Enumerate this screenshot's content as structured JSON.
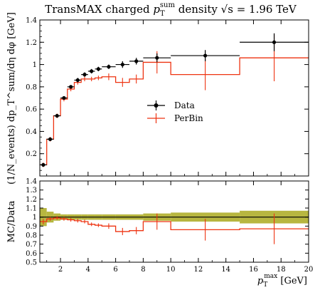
{
  "chart_data": [
    {
      "type": "line",
      "title": "TransMAX charged p_T^sum density √s = 1.96 TeV",
      "title_parts": {
        "prefix": "TransMAX charged ",
        "var": "p",
        "var_sub": "T",
        "var_sup": "sum",
        "middle": " density ",
        "sqrt_s": "√s",
        "energy": " = 1.96 TeV"
      },
      "ylabel": "(1/N_events) dp_T^sum/dη dφ [GeV]",
      "xlim": [
        0.5,
        20
      ],
      "ylim": [
        0,
        1.4
      ],
      "yticks": [
        "0.2",
        "0.4",
        "0.6",
        "0.8",
        "1",
        "1.2",
        "1.4"
      ],
      "legend_placement": "center-right",
      "series": [
        {
          "name": "Data",
          "color": "#000000",
          "x": [
            0.75,
            1.25,
            1.75,
            2.25,
            2.75,
            3.25,
            3.75,
            4.25,
            4.75,
            5.5,
            6.5,
            7.5,
            9.0,
            12.5,
            17.5
          ],
          "xerr": [
            0.25,
            0.25,
            0.25,
            0.25,
            0.25,
            0.25,
            0.25,
            0.25,
            0.25,
            0.5,
            0.5,
            0.5,
            1.0,
            2.5,
            2.5
          ],
          "y": [
            0.1,
            0.33,
            0.54,
            0.7,
            0.8,
            0.86,
            0.91,
            0.94,
            0.96,
            0.98,
            1.0,
            1.03,
            1.06,
            1.08,
            1.2
          ],
          "yerr": [
            0.01,
            0.01,
            0.01,
            0.01,
            0.01,
            0.02,
            0.02,
            0.02,
            0.02,
            0.02,
            0.03,
            0.03,
            0.04,
            0.05,
            0.08
          ]
        },
        {
          "name": "PerBin",
          "color": "#ee3311",
          "bins": [
            0.5,
            1.0,
            1.5,
            2.0,
            2.5,
            3.0,
            3.5,
            4.0,
            4.5,
            5.0,
            6.0,
            7.0,
            8.0,
            10.0,
            15.0,
            20.0
          ],
          "y": [
            0.1,
            0.33,
            0.54,
            0.69,
            0.78,
            0.84,
            0.87,
            0.87,
            0.88,
            0.89,
            0.84,
            0.87,
            1.02,
            0.91,
            1.06
          ],
          "yerr": [
            0.02,
            0.02,
            0.02,
            0.02,
            0.02,
            0.02,
            0.02,
            0.02,
            0.02,
            0.03,
            0.04,
            0.04,
            0.1,
            0.14,
            0.21
          ]
        }
      ]
    },
    {
      "type": "line",
      "ylabel": "MC/Data",
      "xlabel": "p_T^max [GeV]",
      "xlabel_parts": {
        "var": "p",
        "var_sub": "T",
        "var_sup": "max",
        "unit": " [GeV]"
      },
      "xlim": [
        0.5,
        20
      ],
      "ylim": [
        0.5,
        1.4
      ],
      "yticks": [
        "0.5",
        "0.6",
        "0.7",
        "0.8",
        "0.9",
        "1",
        "1.1",
        "1.2",
        "1.3",
        "1.4"
      ],
      "xticks": [
        "2",
        "4",
        "6",
        "8",
        "10",
        "12",
        "14",
        "16",
        "18",
        "20"
      ],
      "band_color": "#aaa91f",
      "band": {
        "bins": [
          0.5,
          1.0,
          1.5,
          2.0,
          2.5,
          3.0,
          3.5,
          4.0,
          4.5,
          5.0,
          6.0,
          7.0,
          8.0,
          10.0,
          15.0,
          20.0
        ],
        "halfwidth": [
          0.1,
          0.06,
          0.04,
          0.03,
          0.03,
          0.03,
          0.03,
          0.03,
          0.03,
          0.03,
          0.03,
          0.03,
          0.04,
          0.05,
          0.07
        ]
      },
      "series": [
        {
          "name": "PerBin",
          "color": "#ee3311",
          "bins": [
            0.5,
            1.0,
            1.5,
            2.0,
            2.5,
            3.0,
            3.5,
            4.0,
            4.5,
            5.0,
            6.0,
            7.0,
            8.0,
            10.0,
            15.0,
            20.0
          ],
          "y": [
            0.95,
            0.98,
            0.99,
            0.98,
            0.97,
            0.96,
            0.95,
            0.92,
            0.91,
            0.9,
            0.84,
            0.85,
            0.95,
            0.86,
            0.87
          ],
          "yerr": [
            0.03,
            0.02,
            0.02,
            0.02,
            0.02,
            0.02,
            0.02,
            0.02,
            0.02,
            0.03,
            0.04,
            0.04,
            0.09,
            0.12,
            0.17
          ]
        }
      ]
    }
  ]
}
